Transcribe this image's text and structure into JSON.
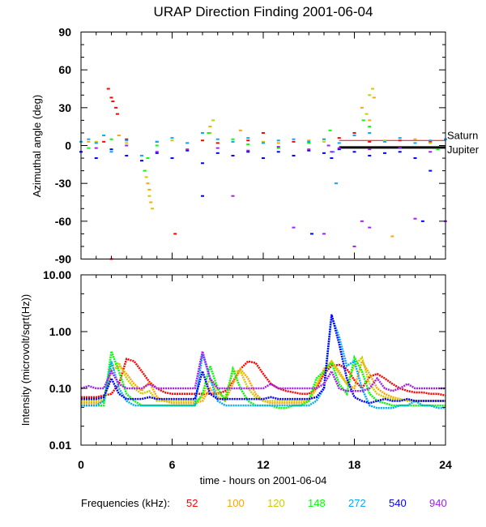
{
  "title": "URAP Direction Finding  2001-06-04",
  "legend": {
    "label": "Frequencies (kHz):",
    "entries": [
      {
        "name": "52",
        "color": "#ff0000"
      },
      {
        "name": "100",
        "color": "#ffa500"
      },
      {
        "name": "120",
        "color": "#cccc00"
      },
      {
        "name": "148",
        "color": "#00ff00"
      },
      {
        "name": "272",
        "color": "#00aaff"
      },
      {
        "name": "540",
        "color": "#0000ff"
      },
      {
        "name": "940",
        "color": "#a020f0"
      }
    ]
  },
  "chart_data": [
    {
      "type": "scatter",
      "ylabel": "Azimuthal angle (deg)",
      "xlim": [
        0,
        24
      ],
      "ylim": [
        -90,
        90
      ],
      "yticks": [
        90,
        60,
        30,
        0,
        -30,
        -60,
        -90
      ],
      "xticks": [
        0,
        6,
        12,
        18,
        24
      ],
      "reference_lines": [
        {
          "label": "Saturn",
          "value": 4,
          "color": "#ff0000",
          "x_range": [
            17,
            24
          ]
        },
        {
          "label": "Jupiter",
          "value": -1.5,
          "color": "#000000",
          "x_range": [
            17,
            24
          ]
        }
      ],
      "series": [
        {
          "name": "52",
          "color": "#ff0000",
          "points": [
            [
              1.8,
              45
            ],
            [
              2,
              38
            ],
            [
              2.1,
              35
            ],
            [
              2.3,
              30
            ],
            [
              2.4,
              25
            ],
            [
              3,
              5
            ],
            [
              5,
              3
            ],
            [
              8,
              4
            ],
            [
              11,
              4
            ],
            [
              12,
              10
            ],
            [
              14,
              3
            ],
            [
              17,
              6
            ],
            [
              18,
              10
            ],
            [
              19,
              3
            ],
            [
              21,
              4
            ],
            [
              23,
              3
            ],
            [
              2,
              -90
            ],
            [
              6.2,
              -70
            ],
            [
              1.5,
              3
            ],
            [
              9,
              2
            ]
          ]
        },
        {
          "name": "100",
          "color": "#ffa500",
          "points": [
            [
              2.5,
              8
            ],
            [
              4.5,
              -35
            ],
            [
              4.6,
              -45
            ],
            [
              4.4,
              -30
            ],
            [
              8.5,
              15
            ],
            [
              10.5,
              12
            ],
            [
              13,
              2
            ],
            [
              16,
              5
            ],
            [
              18.5,
              30
            ],
            [
              19.3,
              38
            ],
            [
              19,
              20
            ],
            [
              22,
              5
            ],
            [
              7,
              2
            ],
            [
              20.5,
              -72
            ],
            [
              15,
              4
            ],
            [
              0.5,
              3
            ]
          ]
        },
        {
          "name": "120",
          "color": "#cccc00",
          "points": [
            [
              4.5,
              -40
            ],
            [
              4.7,
              -50
            ],
            [
              4.3,
              -25
            ],
            [
              8.7,
              20
            ],
            [
              8.5,
              10
            ],
            [
              19,
              40
            ],
            [
              19.2,
              45
            ],
            [
              18.8,
              25
            ],
            [
              1,
              3
            ],
            [
              3,
              2
            ],
            [
              6,
              4
            ],
            [
              12,
              3
            ],
            [
              16,
              3
            ],
            [
              20,
              4
            ],
            [
              23,
              2
            ],
            [
              10,
              3
            ]
          ]
        },
        {
          "name": "148",
          "color": "#00ff00",
          "points": [
            [
              4.2,
              -20
            ],
            [
              4.4,
              -10
            ],
            [
              2,
              5
            ],
            [
              8.4,
              10
            ],
            [
              10,
              5
            ],
            [
              16.4,
              12
            ],
            [
              18.6,
              20
            ],
            [
              19,
              15
            ],
            [
              21,
              -2
            ],
            [
              23.5,
              -3
            ],
            [
              5,
              0
            ],
            [
              13,
              -2
            ],
            [
              15,
              2
            ],
            [
              11,
              1
            ],
            [
              0.5,
              -2
            ]
          ]
        },
        {
          "name": "272",
          "color": "#00aaff",
          "points": [
            [
              0,
              3
            ],
            [
              0.5,
              5
            ],
            [
              1,
              2
            ],
            [
              1.5,
              8
            ],
            [
              2,
              -5
            ],
            [
              3,
              4
            ],
            [
              4,
              -8
            ],
            [
              5,
              3
            ],
            [
              6,
              6
            ],
            [
              7,
              2
            ],
            [
              8,
              10
            ],
            [
              9,
              5
            ],
            [
              10,
              3
            ],
            [
              11,
              6
            ],
            [
              12,
              2
            ],
            [
              13,
              4
            ],
            [
              14,
              5
            ],
            [
              15,
              3
            ],
            [
              16,
              5
            ],
            [
              16.6,
              -5
            ],
            [
              17,
              2
            ],
            [
              18,
              8
            ],
            [
              19,
              10
            ],
            [
              20,
              3
            ],
            [
              21,
              6
            ],
            [
              22,
              2
            ],
            [
              23,
              4
            ],
            [
              24,
              5
            ],
            [
              16.8,
              -30
            ]
          ]
        },
        {
          "name": "540",
          "color": "#0000ff",
          "points": [
            [
              0,
              -5
            ],
            [
              1,
              -10
            ],
            [
              2,
              -3
            ],
            [
              3,
              -8
            ],
            [
              4,
              -12
            ],
            [
              5,
              -6
            ],
            [
              6,
              -10
            ],
            [
              7,
              -4
            ],
            [
              8,
              -14
            ],
            [
              9,
              -6
            ],
            [
              10,
              -8
            ],
            [
              11,
              -5
            ],
            [
              12,
              -10
            ],
            [
              13,
              -5
            ],
            [
              14,
              -8
            ],
            [
              15,
              -4
            ],
            [
              16,
              -6
            ],
            [
              16.5,
              -10
            ],
            [
              17,
              -3
            ],
            [
              18,
              -5
            ],
            [
              19,
              -8
            ],
            [
              20,
              -6
            ],
            [
              21,
              -5
            ],
            [
              22,
              -10
            ],
            [
              23,
              -20
            ],
            [
              22.5,
              -60
            ],
            [
              8,
              -40
            ],
            [
              15.2,
              -70
            ]
          ]
        },
        {
          "name": "940",
          "color": "#a020f0",
          "points": [
            [
              1,
              -2
            ],
            [
              3,
              0
            ],
            [
              5,
              -5
            ],
            [
              7,
              -3
            ],
            [
              9,
              -2
            ],
            [
              11,
              -4
            ],
            [
              13,
              -1
            ],
            [
              15,
              -3
            ],
            [
              16.5,
              -5
            ],
            [
              16.3,
              0
            ],
            [
              17,
              -2
            ],
            [
              19,
              -3
            ],
            [
              21,
              -2
            ],
            [
              23,
              -5
            ],
            [
              18.5,
              -60
            ],
            [
              19,
              -65
            ],
            [
              10,
              -40
            ],
            [
              16,
              -70
            ],
            [
              14,
              -65
            ],
            [
              22,
              -58
            ],
            [
              24,
              -60
            ],
            [
              18,
              -80
            ]
          ]
        }
      ]
    },
    {
      "type": "line",
      "ylabel": "Intensity (microvolt/sqrt(Hz))",
      "xlabel": "time - hours on 2001-06-04",
      "xlim": [
        0,
        24
      ],
      "ylim": [
        0.01,
        10
      ],
      "yscale": "log",
      "yticks": [
        "10.00",
        "1.00",
        "0.10",
        "0.01"
      ],
      "xticks": [
        "0",
        "6",
        "12",
        "18",
        "24"
      ],
      "x_step_hours": 0.5,
      "series": [
        {
          "name": "52",
          "color": "#ff0000",
          "values": [
            0.07,
            0.07,
            0.07,
            0.075,
            0.08,
            0.12,
            0.33,
            0.3,
            0.2,
            0.13,
            0.1,
            0.085,
            0.08,
            0.08,
            0.08,
            0.08,
            0.08,
            0.08,
            0.08,
            0.09,
            0.13,
            0.22,
            0.3,
            0.28,
            0.18,
            0.12,
            0.1,
            0.09,
            0.085,
            0.08,
            0.08,
            0.1,
            0.18,
            0.25,
            0.26,
            0.22,
            0.14,
            0.1,
            0.16,
            0.18,
            0.15,
            0.12,
            0.1,
            0.09,
            0.085,
            0.085,
            0.08,
            0.08,
            0.075
          ]
        },
        {
          "name": "100",
          "color": "#ffa500",
          "values": [
            0.055,
            0.055,
            0.055,
            0.06,
            0.2,
            0.25,
            0.18,
            0.12,
            0.09,
            0.13,
            0.07,
            0.06,
            0.055,
            0.055,
            0.055,
            0.055,
            0.06,
            0.1,
            0.07,
            0.06,
            0.12,
            0.22,
            0.15,
            0.08,
            0.06,
            0.055,
            0.055,
            0.055,
            0.055,
            0.055,
            0.06,
            0.1,
            0.22,
            0.3,
            0.2,
            0.12,
            0.1,
            0.3,
            0.18,
            0.1,
            0.08,
            0.07,
            0.065,
            0.06,
            0.06,
            0.06,
            0.06,
            0.06,
            0.06
          ]
        },
        {
          "name": "120",
          "color": "#cccc00",
          "values": [
            0.06,
            0.06,
            0.06,
            0.065,
            0.25,
            0.28,
            0.15,
            0.1,
            0.08,
            0.09,
            0.06,
            0.06,
            0.06,
            0.06,
            0.06,
            0.06,
            0.07,
            0.15,
            0.08,
            0.07,
            0.2,
            0.2,
            0.1,
            0.07,
            0.06,
            0.06,
            0.06,
            0.06,
            0.06,
            0.06,
            0.06,
            0.12,
            0.2,
            0.3,
            0.18,
            0.12,
            0.25,
            0.35,
            0.12,
            0.08,
            0.07,
            0.065,
            0.065,
            0.06,
            0.06,
            0.06,
            0.06,
            0.06,
            0.06
          ]
        },
        {
          "name": "148",
          "color": "#00ff00",
          "values": [
            0.05,
            0.05,
            0.05,
            0.05,
            0.45,
            0.2,
            0.08,
            0.06,
            0.05,
            0.05,
            0.05,
            0.05,
            0.05,
            0.05,
            0.05,
            0.05,
            0.08,
            0.25,
            0.1,
            0.06,
            0.22,
            0.1,
            0.06,
            0.05,
            0.05,
            0.05,
            0.045,
            0.045,
            0.05,
            0.05,
            0.06,
            0.15,
            0.2,
            0.28,
            0.12,
            0.08,
            0.35,
            0.2,
            0.08,
            0.06,
            0.055,
            0.05,
            0.05,
            0.05,
            0.05,
            0.05,
            0.05,
            0.05,
            0.05
          ]
        },
        {
          "name": "272",
          "color": "#00aaff",
          "values": [
            0.05,
            0.05,
            0.05,
            0.06,
            0.3,
            0.1,
            0.06,
            0.05,
            0.05,
            0.05,
            0.05,
            0.05,
            0.05,
            0.05,
            0.05,
            0.05,
            0.4,
            0.15,
            0.06,
            0.05,
            0.05,
            0.05,
            0.05,
            0.05,
            0.05,
            0.05,
            0.05,
            0.05,
            0.05,
            0.05,
            0.05,
            0.06,
            0.1,
            1.9,
            0.8,
            0.25,
            0.3,
            0.1,
            0.05,
            0.045,
            0.045,
            0.045,
            0.05,
            0.05,
            0.06,
            0.05,
            0.05,
            0.045,
            0.045
          ]
        },
        {
          "name": "540",
          "color": "#0000ff",
          "values": [
            0.065,
            0.065,
            0.065,
            0.07,
            0.15,
            0.08,
            0.065,
            0.065,
            0.065,
            0.07,
            0.065,
            0.065,
            0.065,
            0.065,
            0.065,
            0.065,
            0.2,
            0.08,
            0.065,
            0.065,
            0.065,
            0.065,
            0.065,
            0.065,
            0.065,
            0.07,
            0.065,
            0.065,
            0.065,
            0.065,
            0.065,
            0.07,
            0.1,
            2.0,
            0.6,
            0.15,
            0.07,
            0.06,
            0.055,
            0.06,
            0.065,
            0.06,
            0.06,
            0.065,
            0.06,
            0.06,
            0.06,
            0.06,
            0.06
          ]
        },
        {
          "name": "940",
          "color": "#a020f0",
          "values": [
            0.1,
            0.11,
            0.1,
            0.1,
            0.2,
            0.12,
            0.1,
            0.1,
            0.1,
            0.12,
            0.1,
            0.1,
            0.1,
            0.1,
            0.1,
            0.1,
            0.45,
            0.15,
            0.1,
            0.1,
            0.1,
            0.1,
            0.1,
            0.1,
            0.1,
            0.12,
            0.1,
            0.1,
            0.1,
            0.1,
            0.1,
            0.1,
            0.12,
            0.2,
            0.1,
            0.09,
            0.09,
            0.09,
            0.1,
            0.15,
            0.1,
            0.09,
            0.1,
            0.12,
            0.1,
            0.1,
            0.1,
            0.1,
            0.1
          ]
        }
      ]
    }
  ]
}
